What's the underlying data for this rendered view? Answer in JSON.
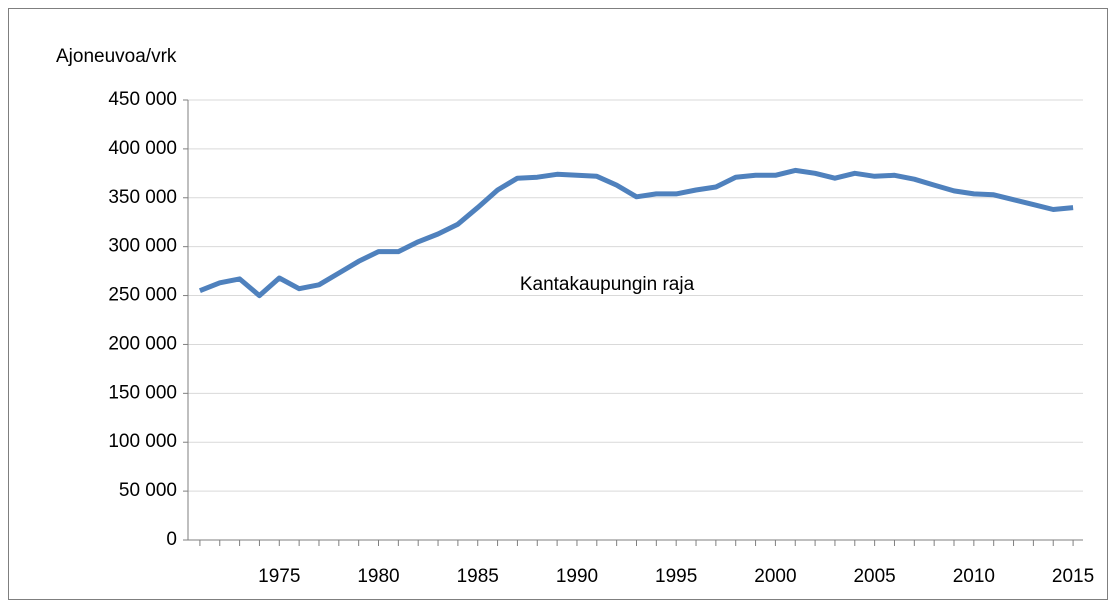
{
  "chart_data": {
    "type": "line",
    "y_label": "Ajoneuvoa/vrk",
    "annotation": "Kantakaupungin raja",
    "x": [
      1971,
      1972,
      1973,
      1974,
      1975,
      1976,
      1977,
      1978,
      1979,
      1980,
      1981,
      1982,
      1983,
      1984,
      1985,
      1986,
      1987,
      1988,
      1989,
      1990,
      1991,
      1992,
      1993,
      1994,
      1995,
      1996,
      1997,
      1998,
      1999,
      2000,
      2001,
      2002,
      2003,
      2004,
      2005,
      2006,
      2007,
      2008,
      2009,
      2010,
      2011,
      2012,
      2013,
      2014,
      2015
    ],
    "series": [
      {
        "color": "#4f81bd",
        "values": [
          255000,
          263000,
          267000,
          250000,
          268000,
          257000,
          261000,
          273000,
          285000,
          295000,
          295000,
          305000,
          313000,
          323000,
          340000,
          358000,
          370000,
          371000,
          374000,
          373000,
          372000,
          363000,
          351000,
          354000,
          354000,
          358000,
          361000,
          371000,
          373000,
          373000,
          378000,
          375000,
          370000,
          375000,
          372000,
          373000,
          369000,
          363000,
          357000,
          354000,
          353000,
          348000,
          343000,
          338000,
          340000
        ]
      }
    ],
    "xlim": [
      1970.4,
      2015.5
    ],
    "xticks": [
      1975,
      1980,
      1985,
      1990,
      1995,
      2000,
      2005,
      2010,
      2015
    ],
    "ylim": [
      0,
      450000
    ],
    "yticks": [
      {
        "value": 0,
        "label": "0"
      },
      {
        "value": 50000,
        "label": "50 000"
      },
      {
        "value": 100000,
        "label": "100 000"
      },
      {
        "value": 150000,
        "label": "150 000"
      },
      {
        "value": 200000,
        "label": "200 000"
      },
      {
        "value": 250000,
        "label": "250 000"
      },
      {
        "value": 300000,
        "label": "300 000"
      },
      {
        "value": 350000,
        "label": "350 000"
      },
      {
        "value": 400000,
        "label": "400 000"
      },
      {
        "value": 450000,
        "label": "450 000"
      }
    ],
    "grid": true
  }
}
